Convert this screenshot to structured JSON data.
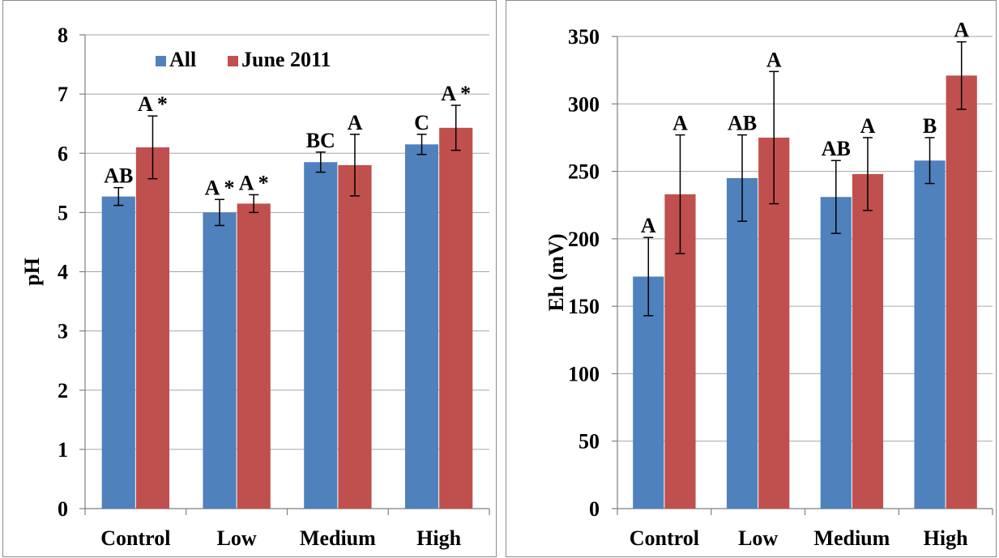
{
  "colors": {
    "all": "#4f81bd",
    "june": "#c0504d",
    "grid": "#a6a6a6",
    "axis": "#7f7f7f"
  },
  "chart_data": [
    {
      "type": "bar",
      "categories": [
        "Control",
        "Low",
        "Medium",
        "High"
      ],
      "ylabel": "pH",
      "ylim": [
        0,
        8
      ],
      "ytick_step": 1,
      "yticks": [
        "0",
        "1",
        "2",
        "3",
        "4",
        "5",
        "6",
        "7",
        "8"
      ],
      "grid": true,
      "legend": {
        "position": "top-center",
        "entries": [
          "All",
          "June 2011"
        ]
      },
      "series": [
        {
          "name": "All",
          "values": [
            5.27,
            5.0,
            5.85,
            6.15
          ],
          "error": [
            0.15,
            0.22,
            0.17,
            0.17
          ],
          "labels": [
            "AB",
            "A *",
            "BC",
            "C"
          ]
        },
        {
          "name": "June 2011",
          "values": [
            6.1,
            5.15,
            5.8,
            6.43
          ],
          "error": [
            0.53,
            0.15,
            0.52,
            0.38
          ],
          "labels": [
            "A *",
            "A *",
            "A",
            "A *"
          ]
        }
      ]
    },
    {
      "type": "bar",
      "categories": [
        "Control",
        "Low",
        "Medium",
        "High"
      ],
      "ylabel": "Eh (mV)",
      "ylim": [
        0,
        350
      ],
      "ytick_step": 50,
      "yticks": [
        "0",
        "50",
        "100",
        "150",
        "200",
        "250",
        "300",
        "350"
      ],
      "grid": true,
      "series": [
        {
          "name": "All",
          "values": [
            172,
            245,
            231,
            258
          ],
          "error": [
            29,
            32,
            27,
            17
          ],
          "labels": [
            "A",
            "AB",
            "AB",
            "B"
          ]
        },
        {
          "name": "June 2011",
          "values": [
            233,
            275,
            248,
            321
          ],
          "error": [
            44,
            49,
            27,
            25
          ],
          "labels": [
            "A",
            "A",
            "A",
            "A"
          ]
        }
      ]
    }
  ]
}
